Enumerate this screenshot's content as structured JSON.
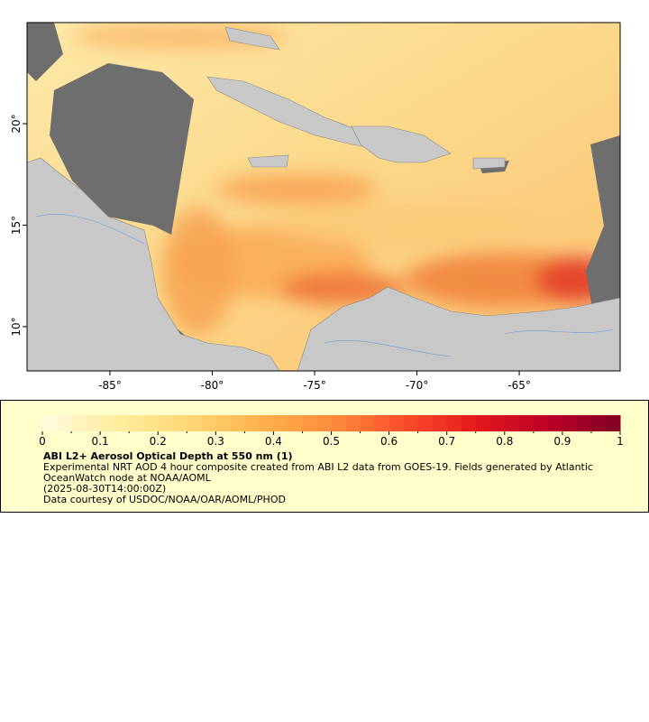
{
  "map": {
    "xlim": [
      -89.05,
      -60.07
    ],
    "ylim": [
      7.82,
      24.98
    ],
    "xticks": [
      {
        "value": -85,
        "label": "-85°"
      },
      {
        "value": -80,
        "label": "-80°"
      },
      {
        "value": -75,
        "label": "-75°"
      },
      {
        "value": -70,
        "label": "-70°"
      },
      {
        "value": -65,
        "label": "-65°"
      }
    ],
    "yticks": [
      {
        "value": 20,
        "label": "20°"
      },
      {
        "value": 15,
        "label": "15°"
      },
      {
        "value": 10,
        "label": "10°"
      }
    ]
  },
  "colorbar": {
    "range": [
      0,
      1
    ],
    "ticks": [
      0,
      0.1,
      0.2,
      0.3,
      0.4,
      0.5,
      0.6,
      0.7,
      0.8,
      0.9,
      1
    ],
    "minor_ticks": [
      0.05,
      0.15,
      0.25,
      0.35,
      0.45,
      0.55,
      0.65,
      0.75,
      0.85,
      0.95
    ],
    "colors": [
      "#fffbe0",
      "#ffeda0",
      "#fed976",
      "#feb24c",
      "#fd8d3c",
      "#fc4e2a",
      "#e31a1c",
      "#bd0026",
      "#800026"
    ]
  },
  "caption": {
    "title": "ABI L2+ Aerosol Optical Depth at 550 nm (1)",
    "description": "Experimental NRT AOD 4 hour composite created from ABI L2 data from GOES-19. Fields generated by Atlantic OceanWatch node at NOAA/AOML",
    "time": "(2025-08-30T14:00:00Z)",
    "credit": "Data courtesy of USDOC/NOAA/OAR/AOML/PHOD"
  }
}
